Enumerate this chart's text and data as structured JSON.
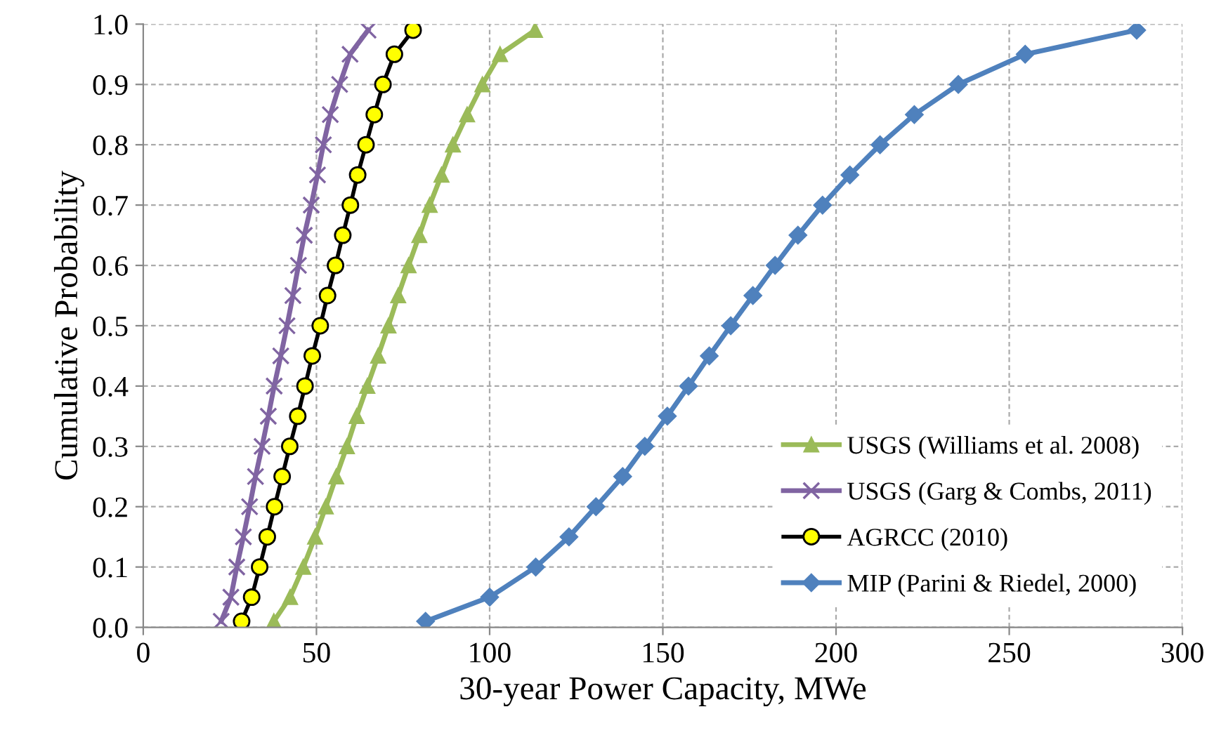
{
  "chart_data": {
    "type": "line",
    "xlabel": "30-year Power Capacity, MWe",
    "ylabel": "Cumulative Probability",
    "xlim": [
      0,
      300
    ],
    "xticks": [
      0,
      50,
      100,
      150,
      200,
      250,
      300
    ],
    "ylim": [
      0,
      1
    ],
    "yticks": [
      {
        "value": 0,
        "label": "0.0"
      },
      0.1,
      0.2,
      0.3,
      0.4,
      0.5,
      0.6,
      0.7,
      0.8,
      0.9,
      {
        "value": 1,
        "label": "1.0"
      }
    ],
    "grid": true,
    "legend": "bottom right",
    "line_style": "solid",
    "series": [
      {
        "name": "USGS (Williams et al. 2008)",
        "color": "#9bbb59",
        "marker": "triangle",
        "x": [
          37.7,
          42.4,
          46.2,
          49.6,
          52.7,
          55.7,
          58.8,
          61.6,
          64.7,
          67.8,
          70.8,
          73.6,
          76.6,
          79.7,
          82.7,
          86.1,
          89.4,
          93.5,
          97.9,
          103.0,
          113.1
        ],
        "values": [
          0.01,
          0.05,
          0.1,
          0.15,
          0.2,
          0.25,
          0.3,
          0.35,
          0.4,
          0.45,
          0.5,
          0.55,
          0.6,
          0.65,
          0.7,
          0.75,
          0.8,
          0.85,
          0.9,
          0.95,
          0.99
        ]
      },
      {
        "name": "USGS (Garg & Combs, 2011)",
        "color": "#8064a2",
        "marker": "cross",
        "x": [
          22.5,
          25.3,
          27.0,
          28.9,
          30.7,
          32.4,
          34.3,
          36.1,
          37.8,
          39.7,
          41.5,
          43.2,
          44.8,
          46.5,
          48.5,
          50.3,
          52.0,
          54.0,
          56.7,
          59.7,
          64.9
        ],
        "values": [
          0.01,
          0.05,
          0.1,
          0.15,
          0.2,
          0.25,
          0.3,
          0.35,
          0.4,
          0.45,
          0.5,
          0.55,
          0.6,
          0.65,
          0.7,
          0.75,
          0.8,
          0.85,
          0.9,
          0.95,
          0.99
        ]
      },
      {
        "name": "AGRCC (2010)",
        "color": "#ffff00",
        "marker": "circle",
        "x": [
          28.4,
          31.3,
          33.6,
          35.8,
          37.9,
          40.1,
          42.3,
          44.6,
          46.7,
          48.8,
          51.1,
          53.2,
          55.5,
          57.6,
          59.8,
          61.9,
          64.3,
          66.7,
          69.2,
          72.5,
          77.9
        ],
        "values": [
          0.01,
          0.05,
          0.1,
          0.15,
          0.2,
          0.25,
          0.3,
          0.35,
          0.4,
          0.45,
          0.5,
          0.55,
          0.6,
          0.65,
          0.7,
          0.75,
          0.8,
          0.85,
          0.9,
          0.95,
          0.99
        ]
      },
      {
        "name": "MIP (Parini & Riedel, 2000)",
        "color": "#4f81bd",
        "marker": "diamond",
        "x": [
          81.5,
          100.0,
          113.3,
          122.9,
          130.7,
          138.4,
          144.8,
          151.3,
          157.4,
          163.4,
          169.6,
          176.0,
          182.4,
          189.0,
          196.1,
          204.0,
          212.7,
          222.6,
          235.3,
          254.6,
          286.8
        ],
        "values": [
          0.01,
          0.05,
          0.1,
          0.15,
          0.2,
          0.25,
          0.3,
          0.35,
          0.4,
          0.45,
          0.5,
          0.55,
          0.6,
          0.65,
          0.7,
          0.75,
          0.8,
          0.85,
          0.9,
          0.95,
          0.99
        ]
      }
    ]
  }
}
